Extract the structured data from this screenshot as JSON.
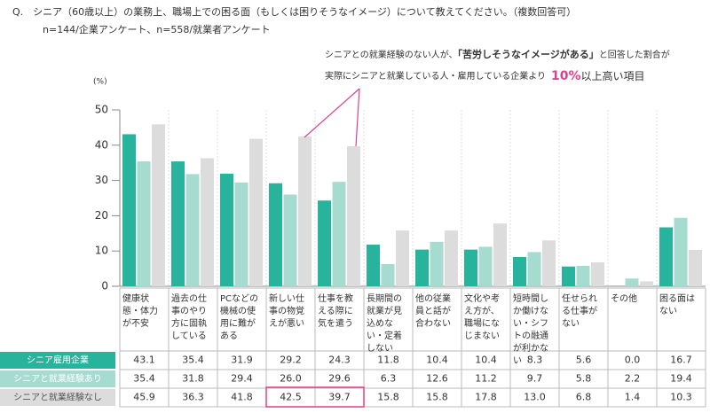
{
  "chart_data": {
    "type": "bar",
    "title": "Q.　シニア（60歳以上）の業務上、職場上での困る面（もしくは困りそうなイメージ）について教えてください。（複数回答可）",
    "subtitle": "n=144/企業アンケート、n=558/就業者アンケート",
    "y_unit": "(%)",
    "annotation": [
      "シニアとの就業経験のない人が、",
      "「苦労しそうなイメージがある」",
      "と回答した割合が",
      "実際にシニアと就業している人・雇用している企業より",
      "10%",
      "以上高い項目"
    ],
    "categories": [
      "健康状態・体力が不安",
      "過去の仕事のやり方に固執している",
      "PCなどの機械の使用に難がある",
      "新しい仕事の物覚えが悪い",
      "仕事を教える際に気を遣う",
      "長期間の就業が見込めない・定着しない",
      "他の従業員と話が合わない",
      "文化や考え方が、職場になじまない",
      "短時間しか働けない・シフトの融通が利かない",
      "任せられる仕事がない",
      "その他",
      "困る面はない"
    ],
    "series": [
      {
        "name": "シニア雇用企業",
        "color": "#27b39c",
        "values": [
          43.1,
          35.4,
          31.9,
          29.2,
          24.3,
          11.8,
          10.4,
          10.4,
          8.3,
          5.6,
          0.0,
          16.7
        ],
        "value_labels": [
          "43.1",
          "35.4",
          "31.9",
          "29.2",
          "24.3",
          "11.8",
          "10.4",
          "10.4",
          "8.3",
          "5.6",
          "0.0",
          "16.7"
        ]
      },
      {
        "name": "シニアと就業経験あり",
        "color": "#a6dbd0",
        "values": [
          35.4,
          31.8,
          29.4,
          26.0,
          29.6,
          6.3,
          12.6,
          11.2,
          9.7,
          5.8,
          2.2,
          19.4
        ],
        "value_labels": [
          "35.4",
          "31.8",
          "29.4",
          "26.0",
          "29.6",
          "6.3",
          "12.6",
          "11.2",
          "9.7",
          "5.8",
          "2.2",
          "19.4"
        ]
      },
      {
        "name": "シニアと就業経験なし",
        "color": "#dcdcdc",
        "values": [
          45.9,
          36.3,
          41.8,
          42.5,
          39.7,
          15.8,
          15.8,
          17.8,
          13.0,
          6.8,
          1.4,
          10.3
        ],
        "value_labels": [
          "45.9",
          "36.3",
          "41.8",
          "42.5",
          "39.7",
          "15.8",
          "15.8",
          "17.8",
          "13.0",
          "6.8",
          "1.4",
          "10.3"
        ]
      }
    ],
    "ylim": [
      0,
      50
    ],
    "yticks": [
      0,
      10,
      20,
      30,
      40,
      50
    ]
  }
}
